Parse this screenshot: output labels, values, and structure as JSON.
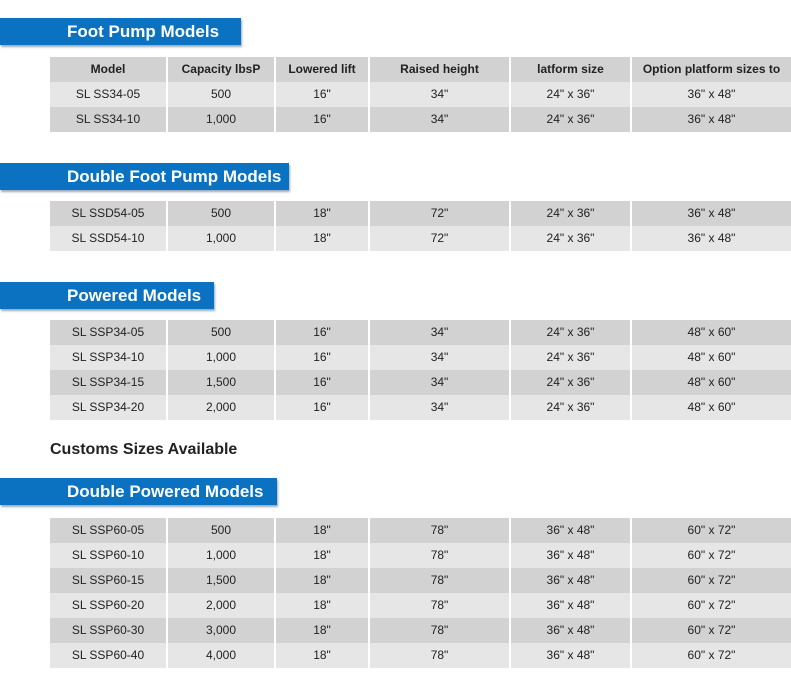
{
  "headers": [
    "Model",
    "Capacity lbsP",
    "Lowered lift",
    "Raised height",
    "latform size",
    "Option platform sizes to"
  ],
  "sections": [
    {
      "title": "Foot Pump Models",
      "rows": [
        [
          "SL SS34-05",
          "500",
          "16\"",
          "34\"",
          "24\" x 36\"",
          "36\" x 48\""
        ],
        [
          "SL SS34-10",
          "1,000",
          "16\"",
          "34\"",
          "24\" x 36\"",
          "36\" x 48\""
        ]
      ]
    },
    {
      "title": "Double Foot Pump Models",
      "rows": [
        [
          "SL SSD54-05",
          "500",
          "18\"",
          "72\"",
          "24\" x 36\"",
          "36\" x 48\""
        ],
        [
          "SL SSD54-10",
          "1,000",
          "18\"",
          "72\"",
          "24\" x 36\"",
          "36\" x 48\""
        ]
      ]
    },
    {
      "title": "Powered Models",
      "rows": [
        [
          "SL SSP34-05",
          "500",
          "16\"",
          "34\"",
          "24\" x 36\"",
          "48\" x 60\""
        ],
        [
          "SL SSP34-10",
          "1,000",
          "16\"",
          "34\"",
          "24\" x 36\"",
          "48\" x 60\""
        ],
        [
          "SL SSP34-15",
          "1,500",
          "16\"",
          "34\"",
          "24\" x 36\"",
          "48\" x 60\""
        ],
        [
          "SL SSP34-20",
          "2,000",
          "16\"",
          "34\"",
          "24\" x 36\"",
          "48\" x 60\""
        ]
      ]
    },
    {
      "title": "Double Powered Models",
      "rows": [
        [
          "SL SSP60-05",
          "500",
          "18\"",
          "78\"",
          "36\" x 48\"",
          "60\" x 72\""
        ],
        [
          "SL SSP60-10",
          "1,000",
          "18\"",
          "78\"",
          "36\" x 48\"",
          "60\" x 72\""
        ],
        [
          "SL SSP60-15",
          "1,500",
          "18\"",
          "78\"",
          "36\" x 48\"",
          "60\" x 72\""
        ],
        [
          "SL SSP60-20",
          "2,000",
          "18\"",
          "78\"",
          "36\" x 48\"",
          "60\" x 72\""
        ],
        [
          "SL SSP60-30",
          "3,000",
          "18\"",
          "78\"",
          "36\" x 48\"",
          "60\" x 72\""
        ],
        [
          "SL SSP60-40",
          "4,000",
          "18\"",
          "78\"",
          "36\" x 48\"",
          "60\" x 72\""
        ]
      ]
    }
  ],
  "note": "Customs Sizes Available",
  "colors": {
    "banner": "#0a72c0",
    "row_dark": "#d2d2d2",
    "row_light": "#e6e6e6"
  }
}
